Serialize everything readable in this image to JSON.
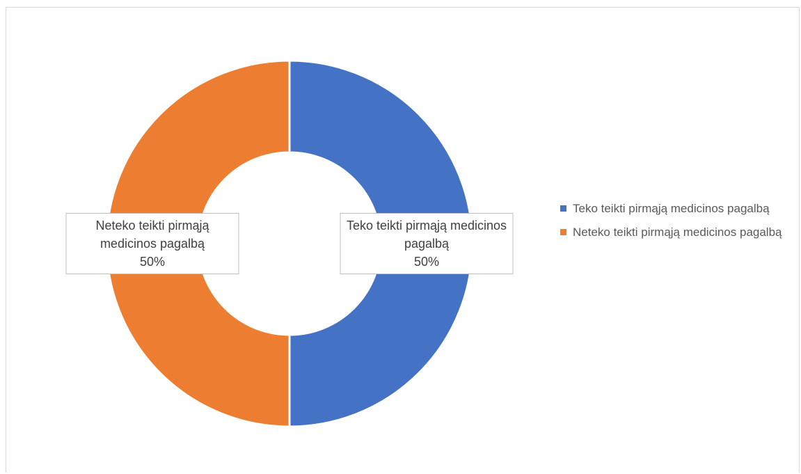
{
  "chart_data": {
    "type": "pie",
    "categories": [
      "Teko teikti pirmąją medicinos pagalbą",
      "Neteko teikti pirmąją medicinos pagalbą"
    ],
    "values": [
      50,
      50
    ],
    "value_labels": [
      "50%",
      "50%"
    ],
    "colors": [
      "#4472c4",
      "#ed7d31"
    ],
    "legend": "right"
  }
}
